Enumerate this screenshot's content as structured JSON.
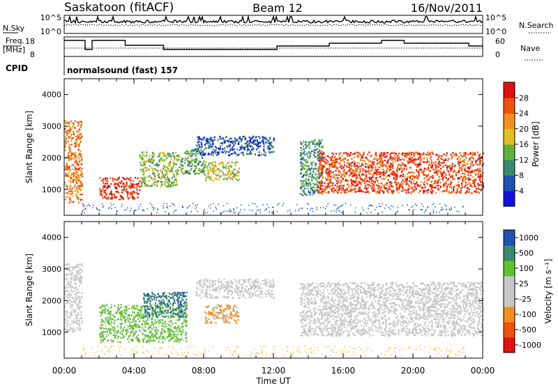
{
  "header": {
    "station": "Saskatoon (fitACF)",
    "beam": "Beam 12",
    "date": "16/Nov/2011"
  },
  "noise_panel": {
    "left_label": "N.Sky",
    "right_label": "N.Search",
    "left_ticks": [
      "10^5",
      "10^0"
    ],
    "right_ticks": [
      "10^5",
      "10^0"
    ]
  },
  "freq_panel": {
    "left_label_1": "Freq.",
    "left_label_2": "[MHz]",
    "left_ticks": [
      "18",
      "8"
    ],
    "right_label": "Nave",
    "right_ticks": [
      "60",
      "0"
    ]
  },
  "cpid": {
    "label": "CPID",
    "value": "normalsound (fast) 157"
  },
  "x_axis": {
    "label": "Time UT",
    "ticks": [
      "00:00",
      "04:00",
      "08:00",
      "12:00",
      "16:00",
      "20:00",
      "00:00"
    ]
  },
  "colors": {
    "power_scale": [
      "#1010e0",
      "#2050b0",
      "#3a8a70",
      "#60b040",
      "#e0c020",
      "#f09020",
      "#f05010",
      "#e01010"
    ],
    "velocity_scale": [
      "#e01010",
      "#f05010",
      "#f09020",
      "#c8c8c8",
      "#c8c8c8",
      "#60c030",
      "#3a8a70",
      "#2050b0"
    ]
  },
  "chart_data": [
    {
      "type": "heatmap",
      "title": "",
      "xlabel": "Time UT",
      "ylabel": "Slant Range [km]",
      "xlim": [
        0,
        24
      ],
      "ylim": [
        180,
        4500
      ],
      "y_ticks": [
        "1000",
        "2000",
        "3000",
        "4000"
      ],
      "colorbar": {
        "label": "Power [dB]",
        "ticks": [
          "4",
          "8",
          "12",
          "16",
          "20",
          "24",
          "28"
        ],
        "range": [
          0,
          30
        ]
      },
      "regions": [
        {
          "t0": 0.0,
          "t1": 1.0,
          "r0": 600,
          "r1": 3200,
          "level": 22
        },
        {
          "t0": 2.0,
          "t1": 4.3,
          "r0": 700,
          "r1": 1400,
          "level": 27
        },
        {
          "t0": 4.3,
          "t1": 6.5,
          "r0": 1100,
          "r1": 2200,
          "level": 14
        },
        {
          "t0": 6.5,
          "t1": 8.0,
          "r0": 1500,
          "r1": 2300,
          "level": 12
        },
        {
          "t0": 7.5,
          "t1": 12.0,
          "r0": 2100,
          "r1": 2700,
          "level": 6
        },
        {
          "t0": 8.0,
          "t1": 10.0,
          "r0": 1300,
          "r1": 1900,
          "level": 16
        },
        {
          "t0": 13.5,
          "t1": 14.8,
          "r0": 800,
          "r1": 2600,
          "level": 10
        },
        {
          "t0": 14.5,
          "t1": 24.0,
          "r0": 900,
          "r1": 2200,
          "level": 25
        }
      ]
    },
    {
      "type": "heatmap",
      "title": "",
      "xlabel": "Time UT",
      "ylabel": "Slant Range [km]",
      "xlim": [
        0,
        24
      ],
      "ylim": [
        180,
        4500
      ],
      "y_ticks": [
        "1000",
        "2000",
        "3000",
        "4000"
      ],
      "colorbar": {
        "label": "Velocity [m s⁻¹]",
        "ticks": [
          "1000",
          "500",
          "100",
          "25",
          "-25",
          "-100",
          "-500",
          "-1000"
        ],
        "range": [
          -1000,
          1000
        ]
      },
      "regions": [
        {
          "t0": 0.0,
          "t1": 1.0,
          "r0": 1000,
          "r1": 3200,
          "level": 0
        },
        {
          "t0": 2.0,
          "t1": 7.0,
          "r0": 700,
          "r1": 1900,
          "level": 350
        },
        {
          "t0": 4.5,
          "t1": 7.0,
          "r0": 1500,
          "r1": 2300,
          "level": 700
        },
        {
          "t0": 8.0,
          "t1": 10.0,
          "r0": 1300,
          "r1": 1900,
          "level": -300
        },
        {
          "t0": 7.5,
          "t1": 12.0,
          "r0": 2100,
          "r1": 2700,
          "level": 0
        },
        {
          "t0": 13.5,
          "t1": 24.0,
          "r0": 900,
          "r1": 2600,
          "level": 0
        }
      ]
    }
  ]
}
